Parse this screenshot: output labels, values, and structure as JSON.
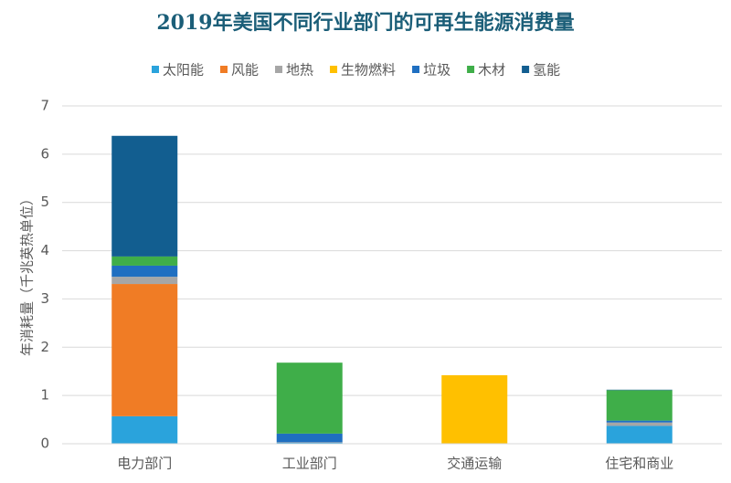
{
  "chart_data": {
    "type": "stacked_bar",
    "title": "2019年美国不同行业部门的可再生能源消费量",
    "y_label": "年消耗量（千兆英热单位）",
    "categories": [
      "电力部门",
      "工业部门",
      "交通运输",
      "住宅和商业"
    ],
    "series": [
      {
        "name": "太阳能",
        "color": "#2aa3dc",
        "values": [
          0.57,
          0.02,
          0,
          0.37
        ]
      },
      {
        "name": "风能",
        "color": "#f07c25",
        "values": [
          2.74,
          0,
          0,
          0
        ]
      },
      {
        "name": "地热",
        "color": "#a6a6a6",
        "values": [
          0.15,
          0.01,
          0,
          0.07
        ]
      },
      {
        "name": "生物燃料",
        "color": "#ffc000",
        "values": [
          0,
          0,
          1.42,
          0
        ]
      },
      {
        "name": "垃圾",
        "color": "#1f6fc1",
        "values": [
          0.23,
          0.18,
          0,
          0.04
        ]
      },
      {
        "name": "木材",
        "color": "#3fae49",
        "values": [
          0.19,
          1.47,
          0,
          0.63
        ]
      },
      {
        "name": "氢能",
        "color": "#125e90",
        "values": [
          2.5,
          0,
          0,
          0.01
        ]
      }
    ],
    "ylim": [
      0,
      7
    ],
    "yticks": [
      0,
      1,
      2,
      3,
      4,
      5,
      6,
      7
    ],
    "grid": true,
    "legend": "top"
  }
}
